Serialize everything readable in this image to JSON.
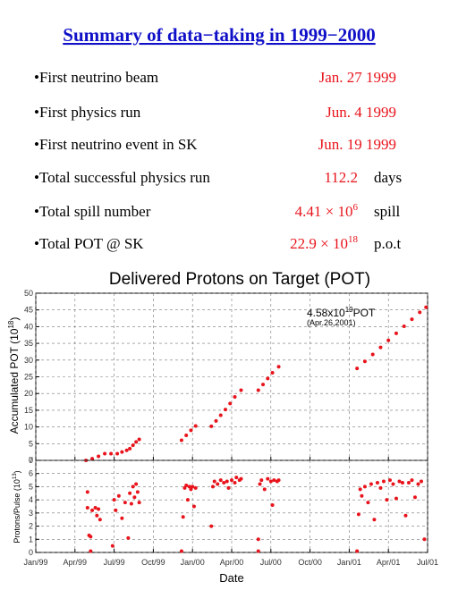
{
  "slide": {
    "title": "Summary of data−taking in 1999−2000",
    "items": [
      {
        "label": "•First neutrino beam",
        "value": "Jan. 27 1999"
      },
      {
        "label": "•First physics run",
        "value": "Jun.  4 1999"
      },
      {
        "label": "•First neutrino event in SK",
        "value": "Jun. 19 1999"
      },
      {
        "label": "•Total successful physics run",
        "value": "112.2",
        "unit": "days"
      },
      {
        "label": "•Total spill number",
        "value": "4.41 × 10",
        "exponent": "6",
        "unit": "spill"
      },
      {
        "label": "•Total POT @ SK",
        "value": "22.9 × 10",
        "exponent": "18",
        "unit": "p.o.t"
      }
    ]
  },
  "chart_data": [
    {
      "type": "scatter",
      "title": "Delivered Protons on Target (POT)",
      "ylabel": "Accumulated POT (10",
      "ylabel_exponent": "18",
      "ylabel_end": ")",
      "annotation": "4.58x10",
      "annotation_exponent": "19",
      "annotation_unit": "POT",
      "annotation_note": "(Apr.26,2001)",
      "color": "#e8141c",
      "grid": true,
      "x": [
        1999.32,
        1999.36,
        1999.4,
        1999.44,
        1999.48,
        1999.52,
        1999.55,
        1999.58,
        1999.6,
        1999.62,
        1999.64,
        1999.66,
        1999.93,
        1999.96,
        1999.99,
        2000.02,
        2000.12,
        2000.15,
        2000.18,
        2000.21,
        2000.24,
        2000.27,
        2000.31,
        2000.42,
        2000.45,
        2000.48,
        2000.51,
        2000.55,
        2001.05,
        2001.1,
        2001.15,
        2001.2,
        2001.25,
        2001.3,
        2001.35,
        2001.4,
        2001.45,
        2001.49
      ],
      "values": [
        0,
        0.5,
        1.2,
        2,
        2,
        2,
        2.5,
        3,
        3.5,
        4.5,
        5.5,
        6.3,
        6,
        7.5,
        9,
        10.3,
        10.2,
        11.8,
        13.5,
        15.2,
        17,
        19,
        21,
        21,
        22.7,
        24.5,
        26.2,
        28,
        27.5,
        29.6,
        31.7,
        33.8,
        35.9,
        38,
        40.1,
        42.2,
        44.3,
        45.8
      ],
      "xlim": [
        1999.0,
        2001.5
      ],
      "ylim": [
        0,
        50
      ],
      "yticks": [
        0,
        5,
        10,
        15,
        20,
        25,
        30,
        35,
        40,
        45,
        50
      ]
    },
    {
      "type": "scatter",
      "ylabel": "Protons/Pulse (10",
      "ylabel_exponent": "13",
      "ylabel_end": ")",
      "xlabel": "Date",
      "color": "#e8141c",
      "grid": true,
      "x": [
        1999.33,
        1999.33,
        1999.34,
        1999.35,
        1999.36,
        1999.38,
        1999.39,
        1999.4,
        1999.41,
        1999.35,
        1999.49,
        1999.5,
        1999.51,
        1999.53,
        1999.55,
        1999.57,
        1999.59,
        1999.6,
        1999.61,
        1999.62,
        1999.63,
        1999.64,
        1999.65,
        1999.66,
        1999.93,
        1999.94,
        1999.95,
        1999.96,
        1999.97,
        1999.98,
        1999.99,
        2000.0,
        2000.01,
        2000.02,
        2000.12,
        2000.13,
        2000.14,
        2000.16,
        2000.18,
        2000.2,
        2000.22,
        2000.23,
        2000.25,
        2000.27,
        2000.28,
        2000.3,
        2000.31,
        2000.42,
        2000.42,
        2000.43,
        2000.44,
        2000.46,
        2000.48,
        2000.5,
        2000.51,
        2000.52,
        2000.54,
        2000.55,
        2001.05,
        2001.06,
        2001.07,
        2001.08,
        2001.1,
        2001.12,
        2001.14,
        2001.16,
        2001.18,
        2001.2,
        2001.22,
        2001.24,
        2001.26,
        2001.28,
        2001.3,
        2001.32,
        2001.34,
        2001.36,
        2001.38,
        2001.4,
        2001.42,
        2001.44,
        2001.46,
        2001.48
      ],
      "values": [
        4.6,
        3.4,
        1.3,
        0.1,
        3.2,
        3.4,
        2.8,
        3.3,
        2.5,
        1.2,
        0.5,
        4.0,
        3.2,
        4.3,
        2.6,
        3.8,
        1.1,
        4.5,
        3.7,
        5.0,
        4.2,
        5.2,
        4.6,
        3.8,
        0.1,
        2.7,
        4.9,
        5.1,
        4.0,
        5.0,
        4.8,
        5.0,
        3.5,
        4.9,
        2.0,
        5.0,
        5.4,
        5.2,
        5.5,
        5.3,
        5.4,
        4.9,
        5.5,
        5.3,
        5.7,
        5.5,
        5.6,
        0.1,
        1.0,
        5.2,
        5.5,
        4.8,
        5.6,
        5.4,
        3.6,
        5.5,
        5.4,
        5.5,
        0.1,
        2.9,
        4.8,
        4.3,
        5.0,
        3.8,
        5.2,
        2.5,
        5.3,
        4.9,
        5.4,
        4.0,
        5.5,
        5.2,
        4.1,
        5.4,
        5.3,
        2.8,
        5.3,
        5.5,
        4.2,
        5.2,
        5.4,
        1.0
      ],
      "xlim": [
        1999.0,
        2001.5
      ],
      "ylim": [
        0,
        7
      ],
      "yticks": [
        0,
        1,
        2,
        3,
        4,
        5,
        6,
        7
      ],
      "xticks": [
        {
          "value": 1999.0,
          "label": "Jan/99"
        },
        {
          "value": 1999.25,
          "label": "Apr/99"
        },
        {
          "value": 1999.5,
          "label": "Jul/99"
        },
        {
          "value": 1999.75,
          "label": "Oct/99"
        },
        {
          "value": 2000.0,
          "label": "Jan/00"
        },
        {
          "value": 2000.25,
          "label": "Apr/00"
        },
        {
          "value": 2000.5,
          "label": "Jul/00"
        },
        {
          "value": 2000.75,
          "label": "Oct/00"
        },
        {
          "value": 2001.0,
          "label": "Jan/01"
        },
        {
          "value": 2001.25,
          "label": "Apr/01"
        },
        {
          "value": 2001.5,
          "label": "Jul/01"
        }
      ]
    }
  ]
}
